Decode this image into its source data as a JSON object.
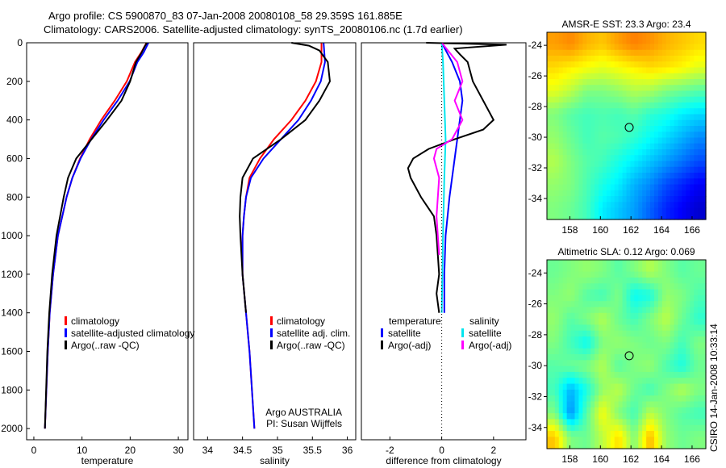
{
  "title_line1": "Argo profile: CS 5900870_83 07-Jan-2008 20080108_58 29.359S 161.885E",
  "title_line2": "Climatology: CARS2006. Satellite-adjusted climatology: synTS_20080106.nc (1.7d earlier)",
  "footer_rotated": "CSIRO 14-Jan-2008 10:33:14",
  "colors": {
    "climatology": "#ff0000",
    "satellite": "#0000ff",
    "argo": "#000000",
    "sal_satellite": "#00e5ee",
    "sal_argo": "#ff00ff"
  },
  "chart_data": [
    {
      "type": "line",
      "xlabel": "temperature",
      "ylabel": "",
      "xlim": [
        -1.5,
        32
      ],
      "ylim": [
        2058,
        0
      ],
      "xticks": [
        "0",
        "10",
        "20",
        "30"
      ],
      "xtickvals": [
        0,
        10,
        20,
        30
      ],
      "yticks": [
        "0",
        "200",
        "400",
        "600",
        "800",
        "1000",
        "1200",
        "1400",
        "1600",
        "1800",
        "2000"
      ],
      "ytickvals": [
        0,
        200,
        400,
        600,
        800,
        1000,
        1200,
        1400,
        1600,
        1800,
        2000
      ],
      "legend": [
        "climatology",
        "satellite-adjusted climatology",
        "Argo(..raw -QC)"
      ],
      "legend_position": "lower-right",
      "annotation": [],
      "series": [
        {
          "name": "climatology",
          "color": "#ff0000",
          "depth": [
            0,
            50,
            100,
            200,
            300,
            400,
            500,
            600,
            700,
            800,
            1000,
            1200,
            1400,
            1600,
            2000
          ],
          "x": [
            23.4,
            22.3,
            21,
            19.3,
            16.8,
            14,
            11.6,
            9.6,
            8,
            6.8,
            5,
            4,
            3.3,
            2.9,
            2.3
          ]
        },
        {
          "name": "satellite",
          "color": "#0000ff",
          "depth": [
            0,
            50,
            100,
            200,
            300,
            400,
            500,
            600,
            700,
            800,
            1000,
            1200,
            1400,
            1600,
            2000
          ],
          "x": [
            23.8,
            22.8,
            21.5,
            19.9,
            17.4,
            14.5,
            11.9,
            9.7,
            8,
            6.8,
            5,
            4,
            3.3,
            2.9,
            2.3
          ]
        },
        {
          "name": "argo",
          "color": "#000000",
          "depth": [
            0,
            20,
            50,
            100,
            200,
            300,
            400,
            500,
            600,
            700,
            800,
            1000,
            1200,
            1400,
            1600,
            2000
          ],
          "x": [
            23.5,
            23,
            22.4,
            21.2,
            20,
            18.2,
            15.2,
            12,
            8.8,
            7.1,
            6.2,
            4.7,
            3.8,
            3.2,
            2.8,
            2.3
          ]
        }
      ]
    },
    {
      "type": "line",
      "xlabel": "salinity",
      "ylabel": "",
      "xlim": [
        33.8,
        36.12
      ],
      "ylim": [
        2058,
        0
      ],
      "xticks": [
        "34",
        "34.5",
        "35",
        "35.5",
        "36"
      ],
      "xtickvals": [
        34,
        34.5,
        35,
        35.5,
        36
      ],
      "yticks": [],
      "ytickvals": [],
      "legend": [
        "climatology",
        "satellite adj. clim.",
        "Argo(..raw -QC)"
      ],
      "legend_position": "lower-right",
      "annotation": [
        "Argo AUSTRALIA",
        "PI: Susan Wijffels"
      ],
      "series": [
        {
          "name": "climatology",
          "color": "#ff0000",
          "depth": [
            0,
            100,
            200,
            300,
            400,
            500,
            600,
            700,
            800,
            900,
            1000,
            1200,
            1400,
            1600,
            2000
          ],
          "x": [
            35.63,
            35.63,
            35.55,
            35.4,
            35.2,
            34.95,
            34.75,
            34.6,
            34.55,
            34.52,
            34.5,
            34.5,
            34.55,
            34.6,
            34.67
          ]
        },
        {
          "name": "satellite",
          "color": "#0000ff",
          "depth": [
            0,
            100,
            200,
            300,
            400,
            500,
            600,
            700,
            800,
            900,
            1000,
            1200,
            1400,
            1600,
            2000
          ],
          "x": [
            35.66,
            35.68,
            35.62,
            35.48,
            35.3,
            35.05,
            34.8,
            34.62,
            34.55,
            34.52,
            34.5,
            34.5,
            34.55,
            34.6,
            34.67
          ]
        },
        {
          "name": "argo",
          "color": "#000000",
          "depth": [
            0,
            15,
            40,
            100,
            200,
            300,
            400,
            500,
            600,
            700,
            800,
            900,
            1000,
            1200,
            1400
          ],
          "x": [
            35.2,
            35.45,
            35.6,
            35.72,
            35.75,
            35.6,
            35.4,
            35.05,
            34.65,
            34.5,
            34.47,
            34.46,
            34.47,
            34.5,
            34.55
          ]
        }
      ]
    },
    {
      "type": "line",
      "xlabel": "difference from climatology",
      "ylabel": "",
      "xlim": [
        -3.1,
        3.25
      ],
      "ylim": [
        2058,
        0
      ],
      "xticks": [
        "-2",
        "0",
        "2"
      ],
      "xtickvals": [
        -2,
        0,
        2
      ],
      "yticks": [],
      "ytickvals": [],
      "legend_headers": [
        "temperature",
        "salinity"
      ],
      "legend": [
        "satellite",
        "Argo(-adj)",
        "satellite",
        "Argo(-adj)"
      ],
      "legend_position": "lower-center",
      "annotation": [],
      "series": [
        {
          "name": "temperature satellite",
          "color": "#0000ff",
          "depth": [
            0,
            100,
            200,
            300,
            400,
            500,
            600,
            700,
            800,
            1000,
            1200,
            1400
          ],
          "x": [
            0,
            0.4,
            0.7,
            0.8,
            0.7,
            0.6,
            0.5,
            0.4,
            0.3,
            0.15,
            0.1,
            0.1
          ]
        },
        {
          "name": "temperature Argo(-adj)",
          "color": "#000000",
          "depth": [
            0,
            10,
            30,
            60,
            100,
            200,
            300,
            400,
            450,
            500,
            550,
            600,
            650,
            700,
            800,
            900,
            1000,
            1200,
            1300,
            1400
          ],
          "x": [
            -0.6,
            2.5,
            0.5,
            0.7,
            1,
            1.2,
            1.6,
            2,
            1.6,
            0.5,
            -0.5,
            -1.1,
            -1.3,
            -1.2,
            -0.8,
            -0.3,
            -0.2,
            -0.1,
            -0.2,
            -0.1
          ]
        },
        {
          "name": "salinity satellite",
          "color": "#00e5ee",
          "depth": [
            0,
            100,
            300,
            500,
            700,
            1000,
            1400
          ],
          "x": [
            0,
            0.05,
            0.1,
            0.15,
            0.1,
            0.05,
            0
          ]
        },
        {
          "name": "salinity Argo(-adj)",
          "color": "#ff00ff",
          "depth": [
            0,
            50,
            100,
            200,
            300,
            400,
            500,
            550,
            600,
            700,
            900,
            1100
          ],
          "x": [
            0,
            0.3,
            0.6,
            0.8,
            0.5,
            0.8,
            0.4,
            -0.2,
            -0.3,
            -0.1,
            -0.2,
            -0.1
          ]
        }
      ]
    },
    {
      "type": "heatmap",
      "title": "AMSR-E SST: 23.3 Argo: 23.4",
      "xlim": [
        156.5,
        166.9
      ],
      "ylim": [
        -35.37,
        -23.15
      ],
      "xticks": [
        "158",
        "160",
        "162",
        "164",
        "166"
      ],
      "xtickvals": [
        158,
        160,
        162,
        164,
        166
      ],
      "yticks": [
        "-24",
        "-26",
        "-28",
        "-30",
        "-32",
        "-34"
      ],
      "ytickvals": [
        -24,
        -26,
        -28,
        -30,
        -32,
        -34
      ],
      "marker": [
        161.885,
        -29.359
      ],
      "grid": [
        [
          0.72,
          0.74,
          0.7,
          0.68,
          0.72,
          0.75,
          0.73,
          0.7,
          0.68,
          0.66
        ],
        [
          0.66,
          0.64,
          0.62,
          0.6,
          0.62,
          0.64,
          0.66,
          0.65,
          0.63,
          0.6
        ],
        [
          0.6,
          0.56,
          0.5,
          0.5,
          0.52,
          0.55,
          0.54,
          0.5,
          0.48,
          0.46
        ],
        [
          0.5,
          0.46,
          0.44,
          0.45,
          0.44,
          0.46,
          0.42,
          0.4,
          0.36,
          0.34
        ],
        [
          0.52,
          0.48,
          0.44,
          0.46,
          0.45,
          0.42,
          0.38,
          0.34,
          0.3,
          0.26
        ],
        [
          0.55,
          0.5,
          0.46,
          0.44,
          0.4,
          0.36,
          0.32,
          0.28,
          0.24,
          0.2
        ],
        [
          0.52,
          0.5,
          0.45,
          0.4,
          0.36,
          0.3,
          0.26,
          0.2,
          0.16,
          0.12
        ],
        [
          0.5,
          0.48,
          0.44,
          0.36,
          0.32,
          0.28,
          0.22,
          0.16,
          0.12,
          0.08
        ]
      ]
    },
    {
      "type": "heatmap",
      "title": "Altimetric SLA: 0.12 Argo: 0.069",
      "xlim": [
        156.5,
        166.9
      ],
      "ylim": [
        -35.37,
        -23.15
      ],
      "xticks": [
        "158",
        "160",
        "162",
        "164",
        "166"
      ],
      "xtickvals": [
        158,
        160,
        162,
        164,
        166
      ],
      "yticks": [
        "-24",
        "-26",
        "-28",
        "-30",
        "-32",
        "-34"
      ],
      "ytickvals": [
        -24,
        -26,
        -28,
        -30,
        -32,
        -34
      ],
      "marker": [
        161.885,
        -29.359
      ],
      "grid": [
        [
          0.48,
          0.5,
          0.52,
          0.5,
          0.46,
          0.5,
          0.55,
          0.5,
          0.46,
          0.48
        ],
        [
          0.5,
          0.52,
          0.46,
          0.44,
          0.5,
          0.38,
          0.4,
          0.52,
          0.5,
          0.45
        ],
        [
          0.52,
          0.46,
          0.5,
          0.55,
          0.48,
          0.44,
          0.5,
          0.56,
          0.48,
          0.42
        ],
        [
          0.5,
          0.44,
          0.38,
          0.5,
          0.52,
          0.5,
          0.48,
          0.5,
          0.44,
          0.5
        ],
        [
          0.46,
          0.48,
          0.5,
          0.55,
          0.46,
          0.5,
          0.52,
          0.45,
          0.4,
          0.48
        ],
        [
          0.44,
          0.3,
          0.4,
          0.52,
          0.56,
          0.48,
          0.44,
          0.5,
          0.55,
          0.5
        ],
        [
          0.5,
          0.26,
          0.46,
          0.62,
          0.5,
          0.44,
          0.56,
          0.5,
          0.46,
          0.44
        ],
        [
          0.68,
          0.5,
          0.48,
          0.56,
          0.66,
          0.5,
          0.7,
          0.52,
          0.48,
          0.5
        ]
      ]
    }
  ]
}
